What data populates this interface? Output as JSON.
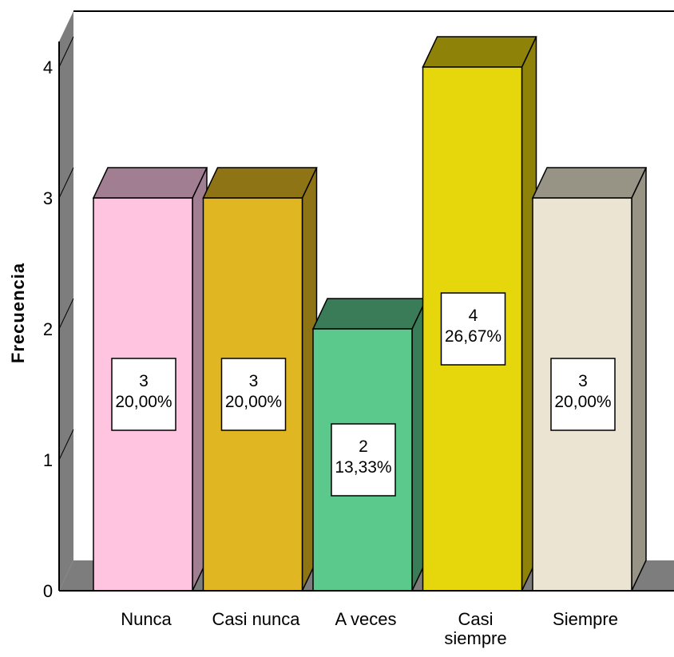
{
  "chart_data": {
    "type": "bar",
    "style": "3d",
    "title": "",
    "xlabel": "",
    "ylabel": "Frecuencia",
    "ylim": [
      0,
      4
    ],
    "yticks": [
      "0",
      "1",
      "2",
      "3",
      "4"
    ],
    "grid": false,
    "legend": "none",
    "categories": [
      {
        "lines": [
          "Nunca"
        ]
      },
      {
        "lines": [
          "Casi nunca"
        ]
      },
      {
        "lines": [
          "A veces"
        ]
      },
      {
        "lines": [
          "Casi",
          "siempre"
        ]
      },
      {
        "lines": [
          "Siempre"
        ]
      }
    ],
    "values": [
      3,
      3,
      2,
      4,
      3
    ],
    "data_labels": [
      {
        "count": "3",
        "percent": "20,00%"
      },
      {
        "count": "3",
        "percent": "20,00%"
      },
      {
        "count": "2",
        "percent": "13,33%"
      },
      {
        "count": "4",
        "percent": "26,67%"
      },
      {
        "count": "3",
        "percent": "20,00%"
      }
    ],
    "colors": [
      {
        "front": "#fec4e0",
        "top": "#a27e92",
        "side": "#a27e92"
      },
      {
        "front": "#e0b622",
        "top": "#8e7414",
        "side": "#8e7414"
      },
      {
        "front": "#5cc98c",
        "top": "#3a7c58",
        "side": "#3a7c58"
      },
      {
        "front": "#e6d60c",
        "top": "#8e8208",
        "side": "#8e8208"
      },
      {
        "front": "#ebe4d2",
        "top": "#989485",
        "side": "#989485"
      }
    ],
    "wall_color": "#7d7d7d",
    "floor_color": "#7d7d7d"
  }
}
